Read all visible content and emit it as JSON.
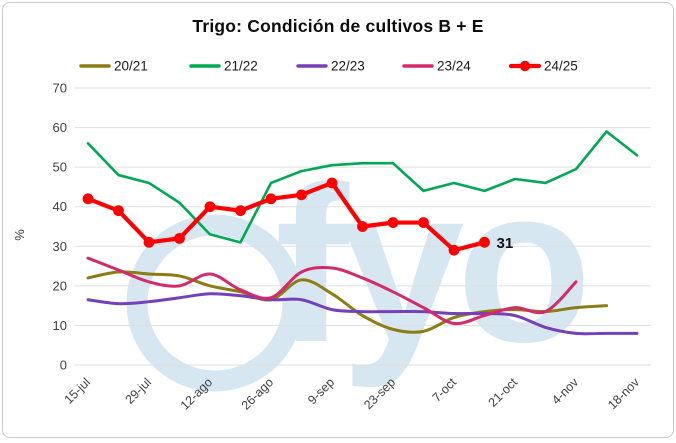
{
  "card": {
    "watermark_text": "fyo"
  },
  "chart_data": {
    "type": "line",
    "title": "Trigo: Condición de cultivos B + E",
    "ylabel": "%",
    "ylim": [
      0,
      70
    ],
    "y_ticks": [
      0,
      10,
      20,
      30,
      40,
      50,
      60,
      70
    ],
    "grid": true,
    "legend_position": "top",
    "n_points": 19,
    "x_labels": [
      "15-jul",
      "29-jul",
      "12-ago",
      "26-ago",
      "9-sep",
      "23-sep",
      "7-oct",
      "21-oct",
      "4-nov",
      "18-nov"
    ],
    "x_label_every": 2,
    "series": [
      {
        "name": "20/21",
        "color": "#8b7c14",
        "smooth": true,
        "values": [
          22,
          23.5,
          23,
          22.5,
          20,
          18.5,
          16.5,
          21.5,
          18,
          12.5,
          9,
          8.5,
          12,
          13.5,
          14,
          13.5,
          14.5,
          15,
          null
        ]
      },
      {
        "name": "21/22",
        "color": "#00a854",
        "smooth": false,
        "values": [
          56,
          48,
          46,
          41,
          33,
          31,
          46,
          49,
          50.5,
          51,
          51,
          44,
          46,
          44,
          47,
          46,
          49.5,
          59,
          53
        ]
      },
      {
        "name": "22/23",
        "color": "#7540b8",
        "smooth": true,
        "values": [
          16.5,
          15.5,
          16,
          17,
          18,
          17.5,
          16.5,
          16.5,
          14,
          13.5,
          13.5,
          13.5,
          13,
          13,
          12.5,
          9.5,
          8,
          8,
          8
        ]
      },
      {
        "name": "23/24",
        "color": "#d42a6b",
        "smooth": true,
        "values": [
          27,
          24,
          21,
          20,
          23,
          19,
          17,
          23.5,
          24.5,
          22,
          18.5,
          14.5,
          10.5,
          12.5,
          14.5,
          13.5,
          21,
          null,
          null
        ]
      },
      {
        "name": "24/25",
        "color": "#fe0000",
        "smooth": false,
        "marker": true,
        "end_label": "31",
        "values": [
          42,
          39,
          31,
          32,
          40,
          39,
          42,
          43,
          46,
          35,
          36,
          36,
          29,
          31,
          null,
          null,
          null,
          null,
          null
        ]
      }
    ],
    "colors": {
      "gridline": "#dfdfdf",
      "tick_text": "#404040",
      "legend_text": "#1a1a1a",
      "end_label_text": "#111111",
      "watermark": "#d7e7f2"
    }
  }
}
